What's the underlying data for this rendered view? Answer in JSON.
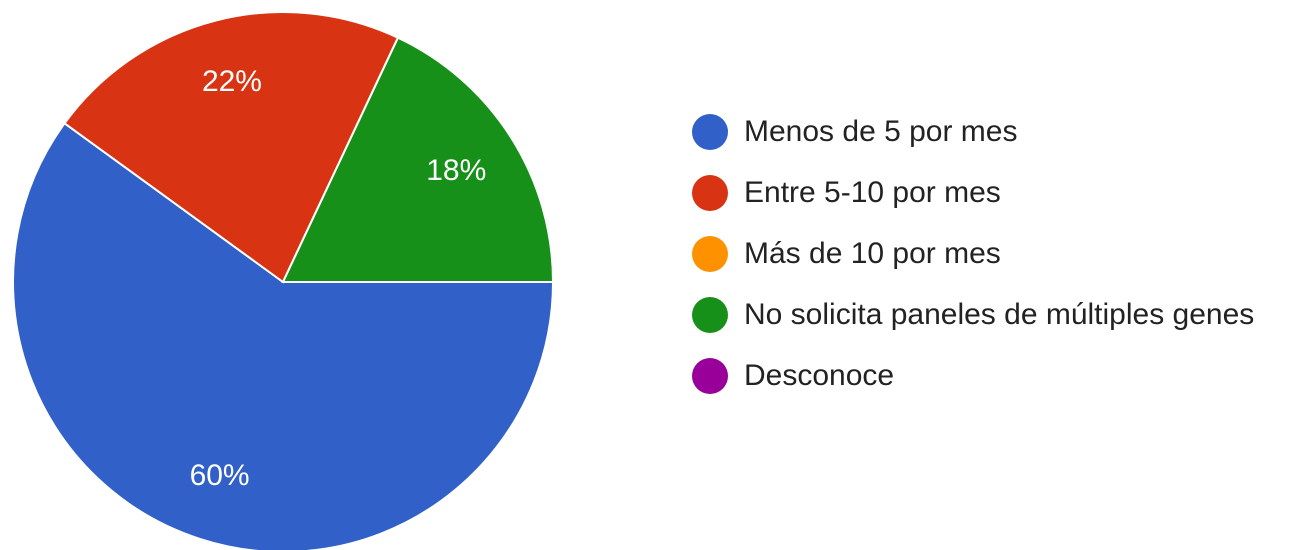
{
  "chart_data": {
    "type": "pie",
    "categories": [
      "Menos de 5 por mes",
      "Entre 5-10 por mes",
      "Más de 10 por mes",
      "No solicita paneles de múltiples genes",
      "Desconoce"
    ],
    "values": [
      60,
      22,
      0,
      18,
      0
    ],
    "value_labels": [
      "60%",
      "22%",
      null,
      "18%",
      null
    ],
    "colors": [
      "#3060c8",
      "#d83312",
      "#fd9100",
      "#17901a",
      "#990099"
    ],
    "legend": "right"
  }
}
